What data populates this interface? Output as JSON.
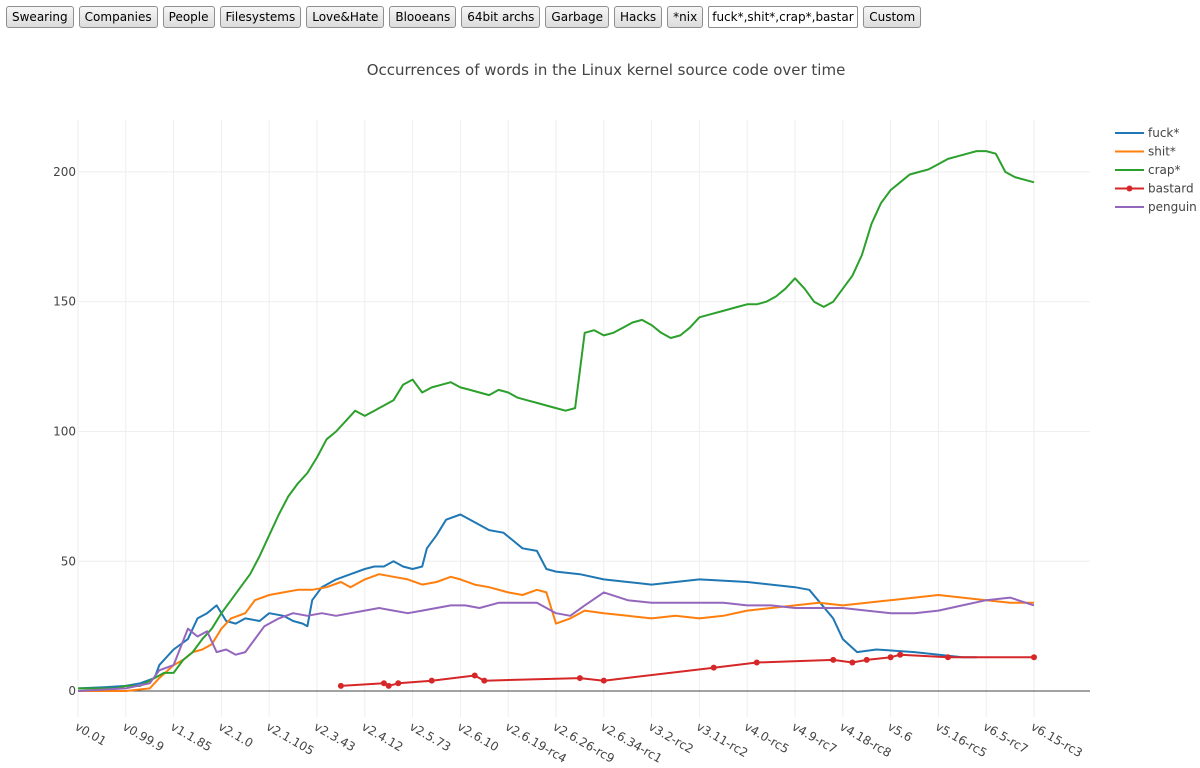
{
  "toolbar": {
    "buttons": [
      "Swearing",
      "Companies",
      "People",
      "Filesystems",
      "Love&Hate",
      "Blooeans",
      "64bit archs",
      "Garbage",
      "Hacks",
      "*nix"
    ],
    "custom_input_value": "fuck*,shit*,crap*,bastard,penguin",
    "custom_button": "Custom"
  },
  "chart_data": {
    "type": "line",
    "title": "Occurrences of words in the Linux kernel source code over time",
    "categories": [
      "v0.01",
      "v0.99.9",
      "v1.1.85",
      "v2.1.0",
      "v2.1.105",
      "v2.3.43",
      "v2.4.12",
      "v2.5.73",
      "v2.6.10",
      "v2.6.19-rc4",
      "v2.6.26-rc9",
      "v2.6.34-rc1",
      "v3.2-rc2",
      "v3.11-rc2",
      "v4.0-rc5",
      "v4.9-rc7",
      "v4.18-rc8",
      "v5.6",
      "v5.16-rc5",
      "v6.5-rc7",
      "v6.15-rc3"
    ],
    "yticks": [
      0,
      50,
      100,
      150,
      200
    ],
    "ylim": [
      -10,
      220
    ],
    "grid": true,
    "legend_position": "top-right",
    "series": [
      {
        "name": "fuck*",
        "color": "#1f77b4",
        "markers": false,
        "points": [
          [
            0,
            1
          ],
          [
            0.6,
            1.5
          ],
          [
            1,
            2
          ],
          [
            1.3,
            3
          ],
          [
            1.6,
            5
          ],
          [
            1.7,
            10
          ],
          [
            2,
            16
          ],
          [
            2.3,
            20
          ],
          [
            2.5,
            28
          ],
          [
            2.7,
            30
          ],
          [
            2.9,
            33
          ],
          [
            3.1,
            27
          ],
          [
            3.3,
            26
          ],
          [
            3.5,
            28
          ],
          [
            3.8,
            27
          ],
          [
            4,
            30
          ],
          [
            4.3,
            29
          ],
          [
            4.5,
            27
          ],
          [
            4.7,
            26
          ],
          [
            4.8,
            25
          ],
          [
            4.9,
            35
          ],
          [
            5.1,
            40
          ],
          [
            5.4,
            43
          ],
          [
            5.7,
            45
          ],
          [
            6,
            47
          ],
          [
            6.2,
            48
          ],
          [
            6.4,
            48
          ],
          [
            6.6,
            50
          ],
          [
            6.8,
            48
          ],
          [
            7,
            47
          ],
          [
            7.2,
            48
          ],
          [
            7.3,
            55
          ],
          [
            7.5,
            60
          ],
          [
            7.7,
            66
          ],
          [
            8,
            68
          ],
          [
            8.3,
            65
          ],
          [
            8.6,
            62
          ],
          [
            8.9,
            61
          ],
          [
            9.1,
            58
          ],
          [
            9.3,
            55
          ],
          [
            9.6,
            54
          ],
          [
            9.8,
            47
          ],
          [
            10,
            46
          ],
          [
            10.5,
            45
          ],
          [
            11,
            43
          ],
          [
            11.5,
            42
          ],
          [
            12,
            41
          ],
          [
            12.5,
            42
          ],
          [
            13,
            43
          ],
          [
            14,
            42
          ],
          [
            15,
            40
          ],
          [
            15.3,
            39
          ],
          [
            15.8,
            28
          ],
          [
            16,
            20
          ],
          [
            16.3,
            15
          ],
          [
            16.7,
            16
          ],
          [
            17.5,
            15
          ],
          [
            18.5,
            13
          ],
          [
            18.8,
            13
          ]
        ]
      },
      {
        "name": "shit*",
        "color": "#ff7f0e",
        "markers": false,
        "points": [
          [
            0,
            0
          ],
          [
            1,
            0
          ],
          [
            1.5,
            1
          ],
          [
            1.7,
            5
          ],
          [
            2,
            10
          ],
          [
            2.2,
            12
          ],
          [
            2.4,
            15
          ],
          [
            2.6,
            16
          ],
          [
            2.8,
            18
          ],
          [
            3,
            24
          ],
          [
            3.2,
            28
          ],
          [
            3.5,
            30
          ],
          [
            3.7,
            35
          ],
          [
            4,
            37
          ],
          [
            4.3,
            38
          ],
          [
            4.6,
            39
          ],
          [
            4.9,
            39
          ],
          [
            5.2,
            40
          ],
          [
            5.5,
            42
          ],
          [
            5.7,
            40
          ],
          [
            6,
            43
          ],
          [
            6.3,
            45
          ],
          [
            6.6,
            44
          ],
          [
            6.9,
            43
          ],
          [
            7.2,
            41
          ],
          [
            7.5,
            42
          ],
          [
            7.8,
            44
          ],
          [
            8,
            43
          ],
          [
            8.3,
            41
          ],
          [
            8.6,
            40
          ],
          [
            9,
            38
          ],
          [
            9.3,
            37
          ],
          [
            9.6,
            39
          ],
          [
            9.8,
            38
          ],
          [
            10,
            26
          ],
          [
            10.3,
            28
          ],
          [
            10.6,
            31
          ],
          [
            11,
            30
          ],
          [
            11.5,
            29
          ],
          [
            12,
            28
          ],
          [
            12.5,
            29
          ],
          [
            13,
            28
          ],
          [
            13.5,
            29
          ],
          [
            14,
            31
          ],
          [
            14.5,
            32
          ],
          [
            15,
            33
          ],
          [
            15.5,
            34
          ],
          [
            16,
            33
          ],
          [
            16.5,
            34
          ],
          [
            17,
            35
          ],
          [
            17.5,
            36
          ],
          [
            18,
            37
          ],
          [
            18.5,
            36
          ],
          [
            19,
            35
          ],
          [
            19.5,
            34
          ],
          [
            20,
            34
          ]
        ]
      },
      {
        "name": "crap*",
        "color": "#2ca02c",
        "markers": false,
        "points": [
          [
            0,
            1
          ],
          [
            0.8,
            1
          ],
          [
            1,
            2
          ],
          [
            1.3,
            2
          ],
          [
            1.6,
            5
          ],
          [
            1.8,
            7
          ],
          [
            2,
            7
          ],
          [
            2.2,
            12
          ],
          [
            2.4,
            15
          ],
          [
            2.6,
            20
          ],
          [
            2.8,
            24
          ],
          [
            3,
            30
          ],
          [
            3.2,
            35
          ],
          [
            3.4,
            40
          ],
          [
            3.6,
            45
          ],
          [
            3.8,
            52
          ],
          [
            4,
            60
          ],
          [
            4.2,
            68
          ],
          [
            4.4,
            75
          ],
          [
            4.6,
            80
          ],
          [
            4.8,
            84
          ],
          [
            5,
            90
          ],
          [
            5.2,
            97
          ],
          [
            5.4,
            100
          ],
          [
            5.6,
            104
          ],
          [
            5.8,
            108
          ],
          [
            6,
            106
          ],
          [
            6.2,
            108
          ],
          [
            6.4,
            110
          ],
          [
            6.6,
            112
          ],
          [
            6.8,
            118
          ],
          [
            7,
            120
          ],
          [
            7.2,
            115
          ],
          [
            7.4,
            117
          ],
          [
            7.6,
            118
          ],
          [
            7.8,
            119
          ],
          [
            8,
            117
          ],
          [
            8.2,
            116
          ],
          [
            8.4,
            115
          ],
          [
            8.6,
            114
          ],
          [
            8.8,
            116
          ],
          [
            9,
            115
          ],
          [
            9.2,
            113
          ],
          [
            9.4,
            112
          ],
          [
            9.6,
            111
          ],
          [
            9.8,
            110
          ],
          [
            10,
            109
          ],
          [
            10.2,
            108
          ],
          [
            10.4,
            109
          ],
          [
            10.6,
            138
          ],
          [
            10.8,
            139
          ],
          [
            11,
            137
          ],
          [
            11.2,
            138
          ],
          [
            11.4,
            140
          ],
          [
            11.6,
            142
          ],
          [
            11.8,
            143
          ],
          [
            12,
            141
          ],
          [
            12.2,
            138
          ],
          [
            12.4,
            136
          ],
          [
            12.6,
            137
          ],
          [
            12.8,
            140
          ],
          [
            13,
            144
          ],
          [
            13.2,
            145
          ],
          [
            13.4,
            146
          ],
          [
            13.6,
            147
          ],
          [
            13.8,
            148
          ],
          [
            14,
            149
          ],
          [
            14.2,
            149
          ],
          [
            14.4,
            150
          ],
          [
            14.6,
            152
          ],
          [
            14.8,
            155
          ],
          [
            15,
            159
          ],
          [
            15.2,
            155
          ],
          [
            15.4,
            150
          ],
          [
            15.6,
            148
          ],
          [
            15.8,
            150
          ],
          [
            16,
            155
          ],
          [
            16.2,
            160
          ],
          [
            16.4,
            168
          ],
          [
            16.6,
            180
          ],
          [
            16.8,
            188
          ],
          [
            17,
            193
          ],
          [
            17.2,
            196
          ],
          [
            17.4,
            199
          ],
          [
            17.6,
            200
          ],
          [
            17.8,
            201
          ],
          [
            18,
            203
          ],
          [
            18.2,
            205
          ],
          [
            18.4,
            206
          ],
          [
            18.6,
            207
          ],
          [
            18.8,
            208
          ],
          [
            19,
            208
          ],
          [
            19.2,
            207
          ],
          [
            19.4,
            200
          ],
          [
            19.6,
            198
          ],
          [
            19.8,
            197
          ],
          [
            20,
            196
          ]
        ]
      },
      {
        "name": "bastard",
        "color": "#d62728",
        "markers": true,
        "points": [
          [
            5.5,
            2
          ],
          [
            6.4,
            3
          ],
          [
            6.5,
            2
          ],
          [
            6.7,
            3
          ],
          [
            7.4,
            4
          ],
          [
            8.3,
            6
          ],
          [
            8.5,
            4
          ],
          [
            10.5,
            5
          ],
          [
            11,
            4
          ],
          [
            13.3,
            9
          ],
          [
            14.2,
            11
          ],
          [
            15.8,
            12
          ],
          [
            16.2,
            11
          ],
          [
            16.5,
            12
          ],
          [
            17,
            13
          ],
          [
            17.2,
            14
          ],
          [
            18.2,
            13
          ],
          [
            20,
            13
          ]
        ]
      },
      {
        "name": "penguin",
        "color": "#9467bd",
        "markers": false,
        "points": [
          [
            0,
            0
          ],
          [
            1,
            1
          ],
          [
            1.5,
            3
          ],
          [
            1.7,
            8
          ],
          [
            2,
            10
          ],
          [
            2.3,
            24
          ],
          [
            2.5,
            21
          ],
          [
            2.7,
            23
          ],
          [
            2.9,
            15
          ],
          [
            3.1,
            16
          ],
          [
            3.3,
            14
          ],
          [
            3.5,
            15
          ],
          [
            3.7,
            20
          ],
          [
            3.9,
            25
          ],
          [
            4.2,
            28
          ],
          [
            4.5,
            30
          ],
          [
            4.8,
            29
          ],
          [
            5.1,
            30
          ],
          [
            5.4,
            29
          ],
          [
            5.7,
            30
          ],
          [
            6,
            31
          ],
          [
            6.3,
            32
          ],
          [
            6.6,
            31
          ],
          [
            6.9,
            30
          ],
          [
            7.2,
            31
          ],
          [
            7.5,
            32
          ],
          [
            7.8,
            33
          ],
          [
            8.1,
            33
          ],
          [
            8.4,
            32
          ],
          [
            8.8,
            34
          ],
          [
            9.2,
            34
          ],
          [
            9.6,
            34
          ],
          [
            10,
            30
          ],
          [
            10.3,
            29
          ],
          [
            10.6,
            33
          ],
          [
            11,
            38
          ],
          [
            11.5,
            35
          ],
          [
            12,
            34
          ],
          [
            12.5,
            34
          ],
          [
            13,
            34
          ],
          [
            13.5,
            34
          ],
          [
            14,
            33
          ],
          [
            14.5,
            33
          ],
          [
            15,
            32
          ],
          [
            15.5,
            32
          ],
          [
            16,
            32
          ],
          [
            16.5,
            31
          ],
          [
            17,
            30
          ],
          [
            17.5,
            30
          ],
          [
            18,
            31
          ],
          [
            18.5,
            33
          ],
          [
            19,
            35
          ],
          [
            19.5,
            36
          ],
          [
            20,
            33
          ]
        ]
      }
    ]
  }
}
